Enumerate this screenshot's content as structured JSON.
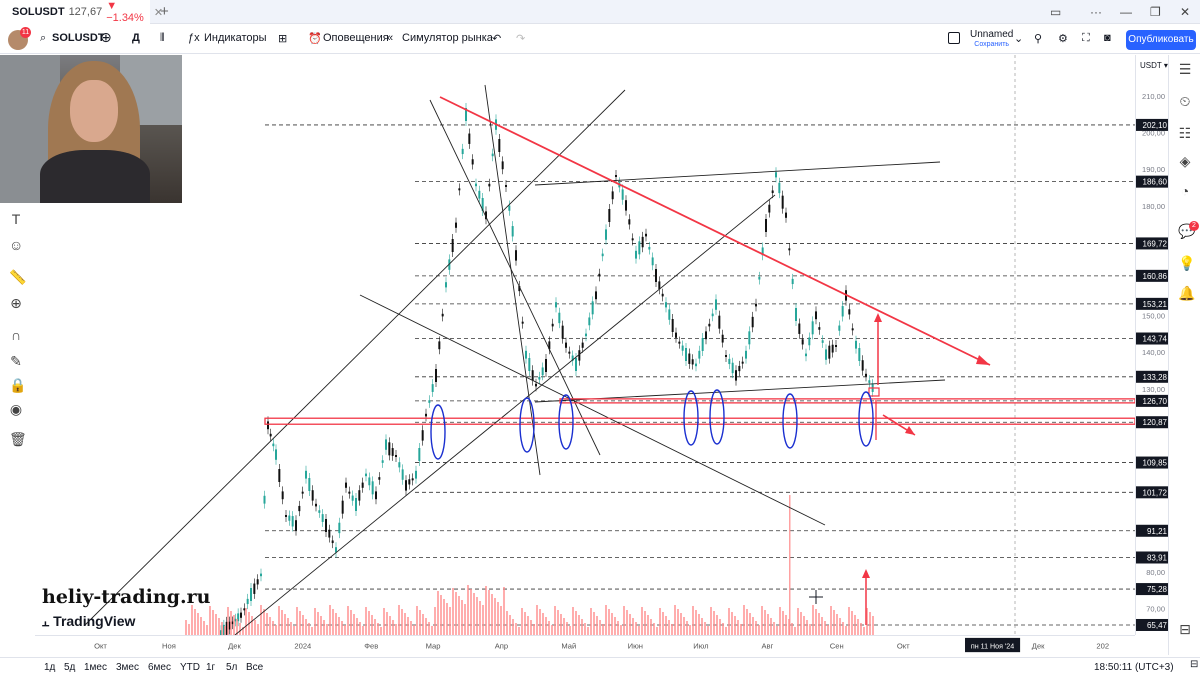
{
  "browser": {
    "tab_title": "SOLUSDT",
    "tab_price": "127,67",
    "tab_change": "▼ −1.34%"
  },
  "toolbar": {
    "symbol": "SOLUSDT",
    "interval": "Д",
    "indicators": "Индикаторы",
    "alerts": "Оповещения",
    "replay": "Симулятор рынка",
    "layout_name": "Unnamed",
    "saved": "Сохранить",
    "publish": "Опубликовать",
    "notif_count": "11"
  },
  "right_rail": {
    "badge": "2"
  },
  "price_axis": {
    "currency": "USDT",
    "scale_ticks": [
      {
        "price": 210,
        "label": "210,00"
      },
      {
        "price": 200,
        "label": "200,00"
      },
      {
        "price": 190,
        "label": "190,00"
      },
      {
        "price": 180,
        "label": "180,00"
      },
      {
        "price": 150,
        "label": "150,00"
      },
      {
        "price": 140,
        "label": "140,00"
      },
      {
        "price": 130,
        "label": "130,00"
      },
      {
        "price": 80,
        "label": "80,00"
      },
      {
        "price": 70,
        "label": "70,00"
      }
    ],
    "level_labels": [
      {
        "price": 202.1,
        "label": "202,10"
      },
      {
        "price": 186.6,
        "label": "186,60"
      },
      {
        "price": 169.72,
        "label": "169,72"
      },
      {
        "price": 160.86,
        "label": "160,86"
      },
      {
        "price": 153.21,
        "label": "153,21"
      },
      {
        "price": 143.74,
        "label": "143,74"
      },
      {
        "price": 133.28,
        "label": "133,28"
      },
      {
        "price": 126.7,
        "label": "126,70"
      },
      {
        "price": 120.87,
        "label": "120,87"
      },
      {
        "price": 109.85,
        "label": "109,85"
      },
      {
        "price": 101.72,
        "label": "101,72"
      },
      {
        "price": 91.21,
        "label": "91,21"
      },
      {
        "price": 83.91,
        "label": "83,91"
      },
      {
        "price": 75.28,
        "label": "75,28"
      },
      {
        "price": 65.47,
        "label": "65,47"
      }
    ]
  },
  "time_axis": {
    "labels": [
      "Окт",
      "Ноя",
      "Дек",
      "2024",
      "Фев",
      "Мар",
      "Апр",
      "Май",
      "Июн",
      "Июл",
      "Авг",
      "Сен",
      "Окт",
      "Дек",
      "202"
    ],
    "cursor_date": "пн 11 Ноя '24"
  },
  "bottom_bar": {
    "ranges": [
      "1д",
      "5д",
      "1мес",
      "3мес",
      "6мес",
      "YTD",
      "1г",
      "5л",
      "Все"
    ],
    "clock": "18:50:11 (UTC+3)"
  },
  "watermark": {
    "site": "heliy-trading.ru",
    "platform": "TradingView"
  },
  "colors": {
    "up": "#26a69a",
    "down": "#111111",
    "red_line": "#f23645",
    "blue_ellipse": "#1a2fd0",
    "accent": "#2962ff"
  }
}
